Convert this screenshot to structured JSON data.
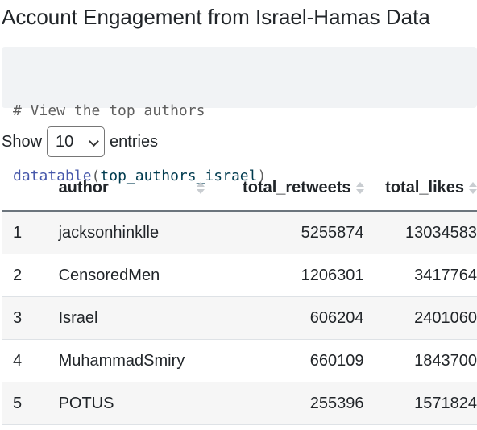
{
  "heading": "Account Engagement from Israel-Hamas Data",
  "code": {
    "comment": "# View the top authors",
    "fn": "datatable",
    "open_paren": "(",
    "arg": "top_authors_israel",
    "close_paren": ")"
  },
  "length_menu": {
    "show_label": "Show",
    "selected": "10",
    "entries_label": "entries"
  },
  "table": {
    "headers": {
      "index": "",
      "author": "author",
      "total_retweets": "total_retweets",
      "total_likes": "total_likes"
    },
    "rows": [
      {
        "index": "1",
        "author": "jacksonhinklle",
        "total_retweets": "5255874",
        "total_likes": "13034583"
      },
      {
        "index": "2",
        "author": "CensoredMen",
        "total_retweets": "1206301",
        "total_likes": "3417764"
      },
      {
        "index": "3",
        "author": "Israel",
        "total_retweets": "606204",
        "total_likes": "2401060"
      },
      {
        "index": "4",
        "author": "MuhammadSmiry",
        "total_retweets": "660109",
        "total_likes": "1843700"
      },
      {
        "index": "5",
        "author": "POTUS",
        "total_retweets": "255396",
        "total_likes": "1571824"
      }
    ]
  }
}
